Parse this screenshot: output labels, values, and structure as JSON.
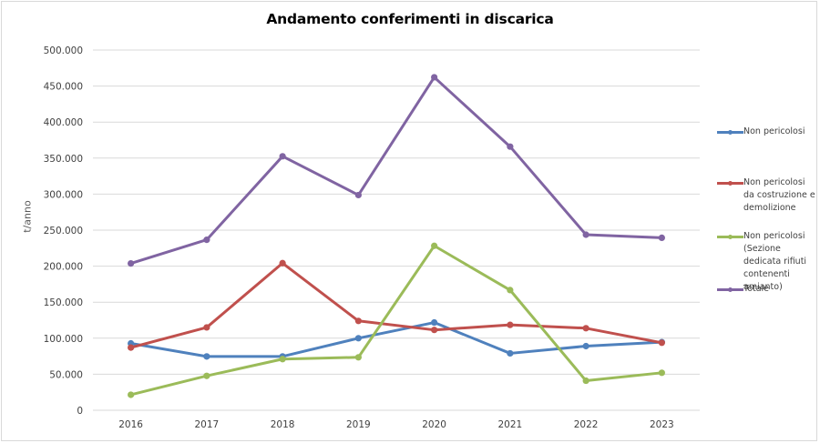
{
  "chart_data": {
    "type": "line",
    "title": "Andamento conferimenti in discarica",
    "xlabel": "",
    "ylabel": "t/anno",
    "categories": [
      "2016",
      "2017",
      "2018",
      "2019",
      "2020",
      "2021",
      "2022",
      "2023"
    ],
    "series": [
      {
        "name": "Non pericolosi",
        "color": "#4F81BD",
        "values": [
          92800,
          74700,
          74700,
          100000,
          121800,
          79000,
          89000,
          94500
        ]
      },
      {
        "name": "Non pericolosi da costruzione e demolizione",
        "color": "#C0504D",
        "values": [
          87000,
          115000,
          204200,
          124000,
          111500,
          118500,
          113900,
          93700
        ]
      },
      {
        "name": "Non pericolosi (Sezione dedicata rifiuti contenenti amianto)",
        "color": "#9BBB59",
        "values": [
          21500,
          47700,
          71000,
          73500,
          228200,
          166800,
          41000,
          52000
        ]
      },
      {
        "name": "Totale",
        "color": "#8064A2",
        "values": [
          203800,
          236600,
          352500,
          298700,
          462200,
          365900,
          243700,
          239400
        ]
      }
    ],
    "ylim": [
      0,
      500000
    ],
    "yticks": [
      0,
      50000,
      100000,
      150000,
      200000,
      250000,
      300000,
      350000,
      400000,
      450000,
      500000
    ],
    "ytick_labels": [
      "0",
      "50.000",
      "100.000",
      "150.000",
      "200.000",
      "250.000",
      "300.000",
      "350.000",
      "400.000",
      "450.000",
      "500.000"
    ],
    "grid": true,
    "legend_position": "right"
  },
  "legend": {
    "items": [
      {
        "label": "Non pericolosi",
        "color": "#4F81BD"
      },
      {
        "label": "Non pericolosi da costruzione e demolizione",
        "color": "#C0504D"
      },
      {
        "label": "Non pericolosi (Sezione dedicata rifiuti contenenti amianto)",
        "color": "#9BBB59"
      },
      {
        "label": "Totale",
        "color": "#8064A2"
      }
    ]
  }
}
